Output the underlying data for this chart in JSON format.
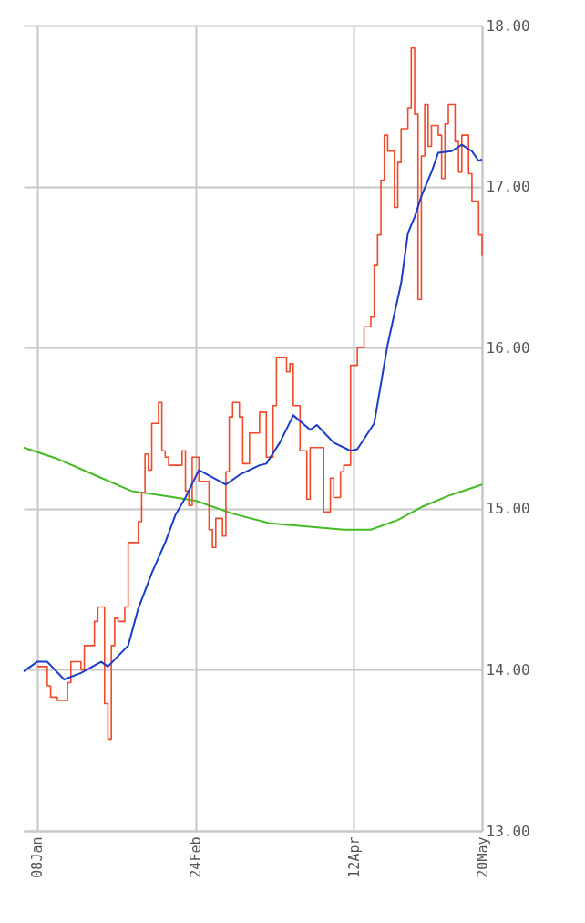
{
  "chart_data": {
    "type": "line",
    "xlim": [
      "--01-04",
      "--05-20"
    ],
    "ylim": [
      13,
      18
    ],
    "xticks": [
      {
        "value": "--01-08",
        "label": "08Jan"
      },
      {
        "value": "--02-24",
        "label": "24Feb"
      },
      {
        "value": "--04-12",
        "label": "12Apr"
      },
      {
        "value": "--05-20",
        "label": "20May"
      }
    ],
    "yticks": [
      {
        "value": 13,
        "label": "13.00"
      },
      {
        "value": 14,
        "label": "14.00"
      },
      {
        "value": 15,
        "label": "15.00"
      },
      {
        "value": 16,
        "label": "16.00"
      },
      {
        "value": 17,
        "label": "17.00"
      },
      {
        "value": 18,
        "label": "18.00"
      }
    ],
    "grid": true,
    "series": [
      {
        "color": "#44bb22",
        "x": [
          "--01-04",
          "--01-14",
          "--01-25",
          "--02-05",
          "--02-15",
          "--02-24",
          "--03-07",
          "--03-18",
          "--03-29",
          "--04-09",
          "--04-17",
          "--04-25",
          "--05-02",
          "--05-10",
          "--05-20"
        ],
        "values": [
          15.38,
          15.31,
          15.21,
          15.11,
          15.08,
          15.05,
          14.97,
          14.91,
          14.89,
          14.87,
          14.87,
          14.93,
          15.01,
          15.08,
          15.15
        ]
      },
      {
        "type": "step",
        "color": "#f04a2a",
        "x": [
          "--01-08",
          "--01-11",
          "--01-12",
          "--01-14",
          "--01-17",
          "--01-18",
          "--01-21",
          "--01-22",
          "--01-25",
          "--01-26",
          "--01-28",
          "--01-29",
          "--01-30",
          "--01-31",
          "--02-01",
          "--02-03",
          "--02-04",
          "--02-07",
          "--02-08",
          "--02-09",
          "--02-10",
          "--02-11",
          "--02-13",
          "--02-14",
          "--02-15",
          "--02-16",
          "--02-20",
          "--02-21",
          "--02-22",
          "--02-23",
          "--02-25",
          "--02-28",
          "--03-01",
          "--03-02",
          "--03-04",
          "--03-05",
          "--03-06",
          "--03-07",
          "--03-09",
          "--03-10",
          "--03-12",
          "--03-15",
          "--03-17",
          "--03-19",
          "--03-20",
          "--03-23",
          "--03-24",
          "--03-25",
          "--03-27",
          "--03-29",
          "--03-30",
          "--04-02",
          "--04-03",
          "--04-05",
          "--04-06",
          "--04-08",
          "--04-09",
          "--04-11",
          "--04-13",
          "--04-15",
          "--04-17",
          "--04-18",
          "--04-19",
          "--04-20",
          "--04-21",
          "--04-22",
          "--04-24",
          "--04-25",
          "--04-26",
          "--04-28",
          "--04-29",
          "--04-30",
          "--05-01",
          "--05-02",
          "--05-03",
          "--05-04",
          "--05-05",
          "--05-07",
          "--05-08",
          "--05-09",
          "--05-10",
          "--05-12",
          "--05-13",
          "--05-14",
          "--05-16",
          "--05-17",
          "--05-19",
          "--05-20"
        ],
        "values": [
          14.02,
          13.9,
          13.83,
          13.81,
          13.92,
          14.05,
          14.0,
          14.15,
          14.3,
          14.39,
          13.79,
          13.57,
          14.15,
          14.32,
          14.3,
          14.39,
          14.79,
          14.92,
          15.1,
          15.34,
          15.24,
          15.53,
          15.66,
          15.36,
          15.32,
          15.27,
          15.36,
          15.11,
          15.02,
          15.32,
          15.17,
          14.87,
          14.76,
          14.94,
          14.83,
          15.23,
          15.57,
          15.66,
          15.57,
          15.28,
          15.47,
          15.6,
          15.32,
          15.64,
          15.94,
          15.85,
          15.9,
          15.64,
          15.36,
          15.06,
          15.38,
          15.38,
          14.98,
          15.19,
          15.07,
          15.23,
          15.27,
          15.89,
          16.0,
          16.13,
          16.19,
          16.51,
          16.7,
          17.04,
          17.32,
          17.22,
          16.87,
          17.15,
          17.36,
          17.49,
          17.86,
          17.45,
          16.3,
          17.19,
          17.51,
          17.25,
          17.38,
          17.32,
          17.05,
          17.39,
          17.51,
          17.28,
          17.09,
          17.32,
          17.08,
          16.91,
          16.7,
          16.57
        ]
      },
      {
        "color": "#1a3cc8",
        "x": [
          "--01-04",
          "--01-08",
          "--01-11",
          "--01-16",
          "--01-21",
          "--01-27",
          "--01-29",
          "--02-04",
          "--02-07",
          "--02-11",
          "--02-15",
          "--02-18",
          "--02-21",
          "--02-25",
          "--03-05",
          "--03-09",
          "--03-15",
          "--03-17",
          "--03-21",
          "--03-25",
          "--03-30",
          "--04-01",
          "--04-06",
          "--04-11",
          "--04-13",
          "--04-18",
          "--04-22",
          "--04-26",
          "--04-28",
          "--04-30",
          "--05-02",
          "--05-05",
          "--05-07",
          "--05-11",
          "--05-14",
          "--05-17",
          "--05-19",
          "--05-20"
        ],
        "values": [
          13.99,
          14.05,
          14.05,
          13.94,
          13.98,
          14.05,
          14.02,
          14.15,
          14.38,
          14.6,
          14.79,
          14.96,
          15.07,
          15.24,
          15.15,
          15.21,
          15.27,
          15.28,
          15.41,
          15.58,
          15.49,
          15.52,
          15.41,
          15.36,
          15.37,
          15.53,
          16.02,
          16.4,
          16.71,
          16.81,
          16.94,
          17.09,
          17.21,
          17.22,
          17.26,
          17.22,
          17.16,
          17.17
        ]
      }
    ]
  }
}
